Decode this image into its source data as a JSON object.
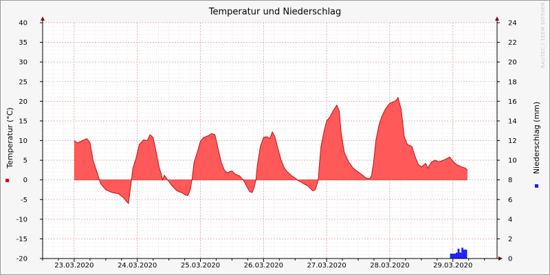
{
  "chart_data": {
    "type": "area",
    "title": "Temperatur und Niederschlag",
    "y_left_label": "Temperatur (°C)",
    "y_right_label": "Niederschlag (mm)",
    "watermark": "RAUTEC / TEEM GOTHER",
    "ylim_left": [
      -20,
      40
    ],
    "ylim_right": [
      0,
      24
    ],
    "y_left_ticks": [
      "40",
      "35",
      "30",
      "25",
      "20",
      "15",
      "10",
      "5",
      "0",
      "-5",
      "-10",
      "-15",
      "-20"
    ],
    "y_right_ticks": [
      "24",
      "22",
      "20",
      "18",
      "16",
      "14",
      "12",
      "10",
      "8",
      "6",
      "4",
      "2",
      "0"
    ],
    "x_labels": [
      "23.03.2020",
      "24.03.2020",
      "25.03.2020",
      "26.03.2020",
      "27.03.2020",
      "28.03.2020",
      "29.03.2020"
    ],
    "x_range_days": [
      22.5,
      29.7
    ],
    "grid": true,
    "colors": {
      "temperature_fill": "#ff5959",
      "temperature_line": "#c01010",
      "precipitation": "#1a1aff",
      "grid_major": "#e4a3a3",
      "grid_minor": "#d8d8d8",
      "plot_background": "#ffffff",
      "arrow": "#8b0000"
    },
    "series": [
      {
        "name": "Temperatur (°C)",
        "points": [
          [
            23.0,
            10.0
          ],
          [
            23.05,
            9.4
          ],
          [
            23.13,
            10.0
          ],
          [
            23.2,
            10.5
          ],
          [
            23.25,
            9.5
          ],
          [
            23.3,
            5.0
          ],
          [
            23.36,
            2.0
          ],
          [
            23.42,
            -1.0
          ],
          [
            23.5,
            -2.5
          ],
          [
            23.6,
            -3.2
          ],
          [
            23.7,
            -3.5
          ],
          [
            23.78,
            -4.5
          ],
          [
            23.83,
            -5.5
          ],
          [
            23.86,
            -6.0
          ],
          [
            23.9,
            -1.0
          ],
          [
            23.93,
            3.0
          ],
          [
            23.98,
            5.5
          ],
          [
            24.03,
            9.0
          ],
          [
            24.1,
            10.2
          ],
          [
            24.16,
            10.0
          ],
          [
            24.2,
            11.5
          ],
          [
            24.25,
            10.8
          ],
          [
            24.3,
            7.0
          ],
          [
            24.35,
            3.0
          ],
          [
            24.38,
            1.5
          ],
          [
            24.4,
            0.0
          ],
          [
            24.43,
            1.2
          ],
          [
            24.48,
            0.0
          ],
          [
            24.55,
            -1.5
          ],
          [
            24.63,
            -2.8
          ],
          [
            24.7,
            -3.2
          ],
          [
            24.76,
            -3.8
          ],
          [
            24.8,
            -4.0
          ],
          [
            24.84,
            -2.5
          ],
          [
            24.87,
            0.5
          ],
          [
            24.9,
            4.5
          ],
          [
            24.95,
            7.0
          ],
          [
            25.0,
            9.8
          ],
          [
            25.05,
            10.8
          ],
          [
            25.12,
            11.2
          ],
          [
            25.18,
            11.8
          ],
          [
            25.23,
            11.5
          ],
          [
            25.28,
            8.0
          ],
          [
            25.33,
            4.5
          ],
          [
            25.38,
            2.5
          ],
          [
            25.42,
            1.8
          ],
          [
            25.5,
            2.3
          ],
          [
            25.55,
            1.5
          ],
          [
            25.62,
            1.0
          ],
          [
            25.68,
            0.0
          ],
          [
            25.73,
            -1.5
          ],
          [
            25.78,
            -3.0
          ],
          [
            25.82,
            -3.2
          ],
          [
            25.85,
            -2.0
          ],
          [
            25.88,
            0.0
          ],
          [
            25.9,
            3.5
          ],
          [
            25.95,
            8.5
          ],
          [
            26.0,
            10.8
          ],
          [
            26.05,
            11.0
          ],
          [
            26.1,
            10.5
          ],
          [
            26.14,
            12.2
          ],
          [
            26.18,
            11.0
          ],
          [
            26.22,
            8.5
          ],
          [
            26.28,
            5.0
          ],
          [
            26.33,
            3.0
          ],
          [
            26.38,
            2.0
          ],
          [
            26.45,
            1.0
          ],
          [
            26.5,
            0.5
          ],
          [
            26.55,
            -0.2
          ],
          [
            26.6,
            -0.6
          ],
          [
            26.66,
            -1.2
          ],
          [
            26.7,
            -1.5
          ],
          [
            26.74,
            -2.2
          ],
          [
            26.78,
            -2.8
          ],
          [
            26.82,
            -2.5
          ],
          [
            26.85,
            -1.0
          ],
          [
            26.87,
            0.5
          ],
          [
            26.88,
            3.0
          ],
          [
            26.91,
            8.5
          ],
          [
            26.96,
            12.5
          ],
          [
            27.0,
            15.0
          ],
          [
            27.05,
            16.0
          ],
          [
            27.1,
            17.5
          ],
          [
            27.16,
            19.0
          ],
          [
            27.2,
            17.5
          ],
          [
            27.23,
            12.0
          ],
          [
            27.28,
            7.0
          ],
          [
            27.35,
            4.5
          ],
          [
            27.42,
            3.0
          ],
          [
            27.5,
            2.0
          ],
          [
            27.57,
            1.2
          ],
          [
            27.62,
            0.5
          ],
          [
            27.68,
            0.3
          ],
          [
            27.71,
            1.0
          ],
          [
            27.74,
            4.0
          ],
          [
            27.78,
            10.0
          ],
          [
            27.83,
            14.0
          ],
          [
            27.87,
            16.0
          ],
          [
            27.93,
            18.0
          ],
          [
            28.0,
            19.5
          ],
          [
            28.05,
            19.8
          ],
          [
            28.1,
            20.2
          ],
          [
            28.13,
            21.0
          ],
          [
            28.18,
            18.0
          ],
          [
            28.23,
            11.0
          ],
          [
            28.28,
            9.0
          ],
          [
            28.35,
            8.5
          ],
          [
            28.4,
            6.0
          ],
          [
            28.45,
            4.0
          ],
          [
            28.5,
            3.3
          ],
          [
            28.57,
            4.2
          ],
          [
            28.6,
            3.0
          ],
          [
            28.66,
            4.5
          ],
          [
            28.72,
            5.0
          ],
          [
            28.78,
            4.6
          ],
          [
            28.85,
            5.0
          ],
          [
            28.9,
            5.4
          ],
          [
            28.95,
            5.8
          ],
          [
            29.0,
            4.8
          ],
          [
            29.05,
            4.0
          ],
          [
            29.1,
            3.6
          ],
          [
            29.16,
            3.2
          ],
          [
            29.2,
            3.0
          ],
          [
            29.23,
            2.4
          ]
        ]
      },
      {
        "name": "Niederschlag (mm)",
        "bars": [
          [
            28.97,
            0.5
          ],
          [
            29.0,
            0.5
          ],
          [
            29.03,
            0.5
          ],
          [
            29.06,
            0.6
          ],
          [
            29.09,
            1.0
          ],
          [
            29.12,
            0.6
          ],
          [
            29.15,
            1.1
          ],
          [
            29.18,
            0.9
          ],
          [
            29.21,
            0.9
          ]
        ]
      }
    ]
  }
}
